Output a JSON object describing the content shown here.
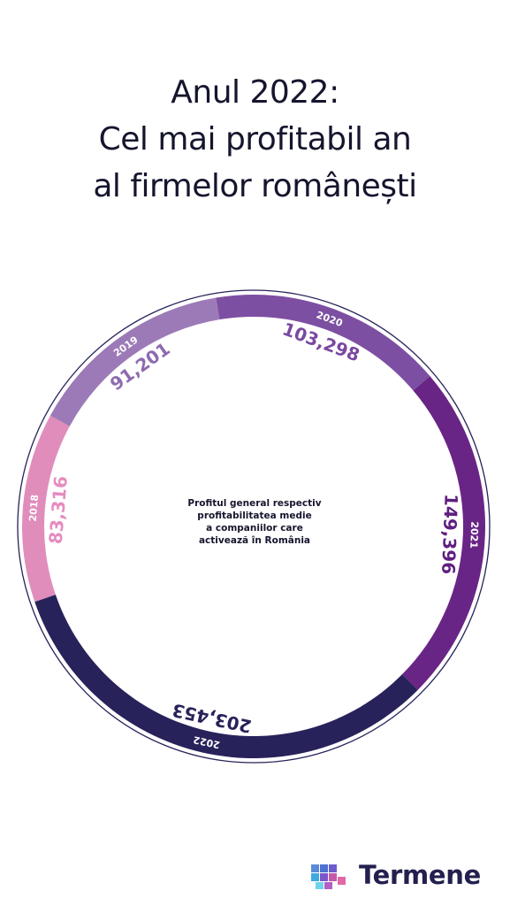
{
  "title": {
    "line1": "Anul 2022:",
    "line2": "Cel mai profitabil an",
    "line3": "al firmelor românești"
  },
  "center_text": {
    "line1": "Profitul general respectiv",
    "line2": "profitabilitatea medie",
    "line3": "a companiilor care",
    "line4": "activează în România"
  },
  "brand": {
    "name": "Termene",
    "logo_icon": "cube-grid-icon"
  },
  "chart_data": {
    "type": "pie",
    "style": "ring",
    "categories": [
      "2018",
      "2019",
      "2020",
      "2021",
      "2022"
    ],
    "values": [
      83316,
      91201,
      103298,
      149396,
      203453
    ],
    "value_labels": [
      "83,316",
      "91,201",
      "103,298",
      "149,396",
      "203,453"
    ],
    "colors": [
      "#e08dbc",
      "#9c7ab7",
      "#7d4fa2",
      "#692585",
      "#27225a"
    ],
    "label_colors": [
      "#e58cc0",
      "#8e6ab0",
      "#7a48a0",
      "#5f1f80",
      "#27225a"
    ]
  }
}
